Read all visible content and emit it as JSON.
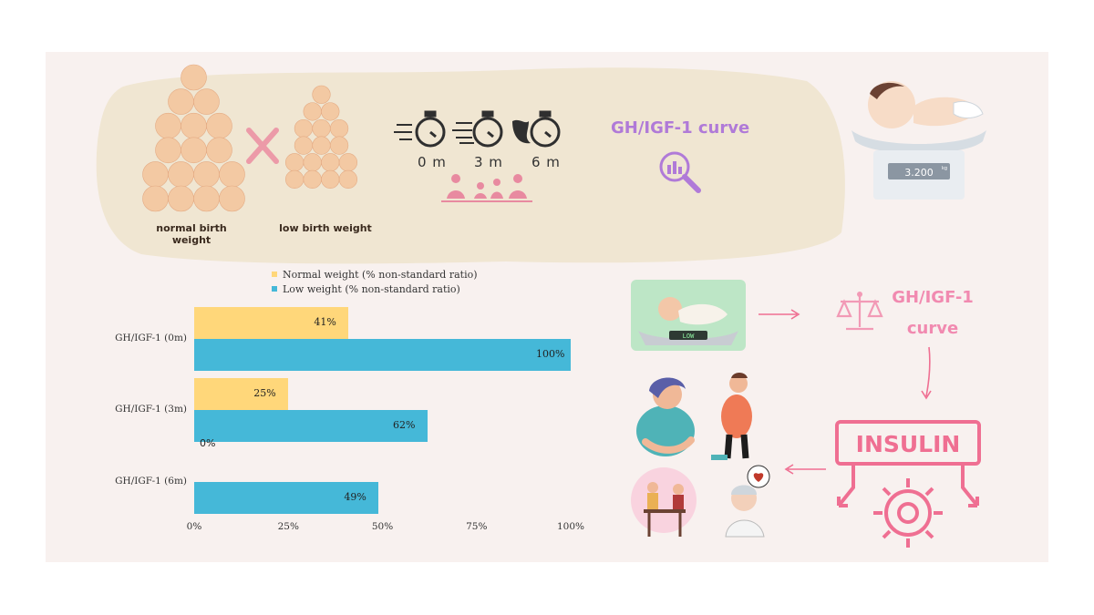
{
  "top_banner": {
    "normal_label": "normal birth weight",
    "low_label": "low birth weight",
    "times": [
      "0 m",
      "3 m",
      "6 m"
    ],
    "gh_curve_title": "GH/IGF-1 curve"
  },
  "scale_display": "3.200",
  "scale_unit": "kg",
  "low_display": "LOW",
  "right_flow": {
    "gh_curve_line1": "GH/IGF-1",
    "gh_curve_line2": "curve",
    "insulin_label": "INSULIN"
  },
  "colors": {
    "normal": "#ffd77a",
    "low": "#45b8d8",
    "panel_bg": "#f8f1ef",
    "banner_bg": "#f0e6d2",
    "pink": "#ef6f92"
  },
  "chart_data": {
    "type": "bar",
    "orientation": "horizontal",
    "categories": [
      "GH/IGF-1 (0m)",
      "GH/IGF-1 (3m)",
      "GH/IGF-1 (6m)"
    ],
    "series": [
      {
        "name": "Normal weight (% non-standard ratio)",
        "values": [
          41,
          25,
          0
        ],
        "labels": [
          "41%",
          "25%",
          "0%"
        ]
      },
      {
        "name": "Low weight (% non-standard ratio)",
        "values": [
          100,
          62,
          49
        ],
        "labels": [
          "100%",
          "62%",
          "49%"
        ]
      }
    ],
    "xlim": [
      0,
      100
    ],
    "x_ticks": [
      "0%",
      "25%",
      "50%",
      "75%",
      "100%"
    ],
    "legend_position": "top",
    "grid": false
  }
}
